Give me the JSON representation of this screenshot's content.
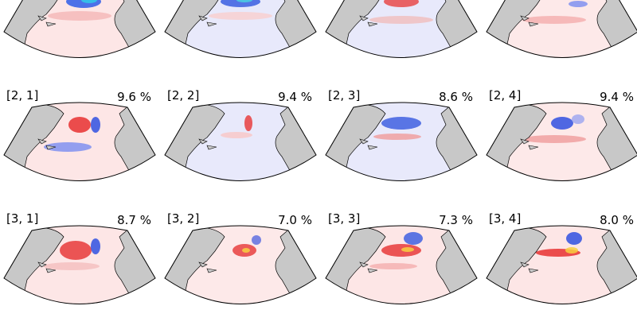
{
  "panels": [
    {
      "label": "[2, 1]",
      "percent": "9.6 %"
    },
    {
      "label": "[2, 2]",
      "percent": "9.4 %"
    },
    {
      "label": "[2, 3]",
      "percent": "8.6 %"
    },
    {
      "label": "[2, 4]",
      "percent": "9.4 %"
    },
    {
      "label": "[3, 1]",
      "percent": "8.7 %"
    },
    {
      "label": "[3, 2]",
      "percent": "7.0 %"
    },
    {
      "label": "[3, 3]",
      "percent": "7.3 %"
    },
    {
      "label": "[3, 4]",
      "percent": "8.0 %"
    }
  ]
}
